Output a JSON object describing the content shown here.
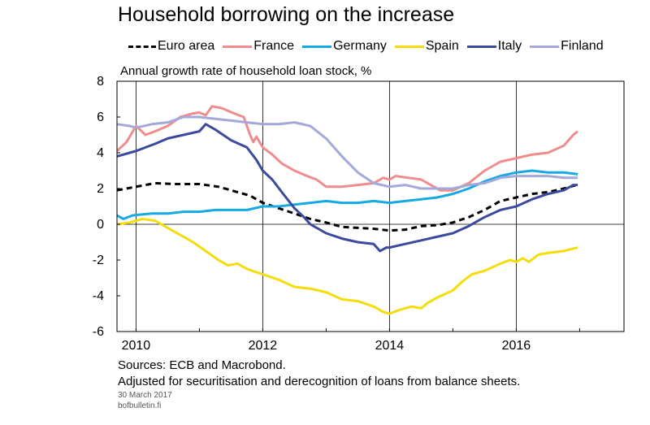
{
  "header": {
    "title": "Household borrowing on the increase"
  },
  "chart_data": {
    "type": "line",
    "title": "Household borrowing on the increase",
    "ylabel": "Annual growth rate of household loan stock, %",
    "xlabel": "",
    "ylim": [
      -6,
      8
    ],
    "yticks": [
      "8",
      "6",
      "4",
      "2",
      "0",
      "-2",
      "-4",
      "-6"
    ],
    "xlim": [
      2009.7,
      2017.7
    ],
    "xticks": [
      "2010",
      "2012",
      "2014",
      "2016"
    ],
    "grid": true,
    "legend_position": "top",
    "series": [
      {
        "name": "Euro area",
        "color": "#000000",
        "dashed": true,
        "points": [
          [
            2009.7,
            1.9
          ],
          [
            2010.0,
            2.1
          ],
          [
            2010.3,
            2.3
          ],
          [
            2010.6,
            2.25
          ],
          [
            2011.0,
            2.25
          ],
          [
            2011.3,
            2.1
          ],
          [
            2011.6,
            1.8
          ],
          [
            2011.8,
            1.6
          ],
          [
            2012.0,
            1.2
          ],
          [
            2012.25,
            0.9
          ],
          [
            2012.5,
            0.6
          ],
          [
            2012.75,
            0.3
          ],
          [
            2013.0,
            0.1
          ],
          [
            2013.25,
            -0.15
          ],
          [
            2013.5,
            -0.2
          ],
          [
            2013.75,
            -0.25
          ],
          [
            2014.0,
            -0.35
          ],
          [
            2014.25,
            -0.3
          ],
          [
            2014.5,
            -0.1
          ],
          [
            2014.75,
            -0.05
          ],
          [
            2015.0,
            0.1
          ],
          [
            2015.25,
            0.4
          ],
          [
            2015.5,
            0.8
          ],
          [
            2015.75,
            1.3
          ],
          [
            2016.0,
            1.5
          ],
          [
            2016.25,
            1.7
          ],
          [
            2016.5,
            1.8
          ],
          [
            2016.75,
            2.0
          ],
          [
            2016.95,
            2.2
          ]
        ]
      },
      {
        "name": "France",
        "color": "#F08C8C",
        "dashed": false,
        "points": [
          [
            2009.7,
            4.1
          ],
          [
            2009.85,
            4.6
          ],
          [
            2010.0,
            5.5
          ],
          [
            2010.15,
            5.0
          ],
          [
            2010.3,
            5.2
          ],
          [
            2010.5,
            5.5
          ],
          [
            2010.7,
            6.0
          ],
          [
            2010.9,
            6.2
          ],
          [
            2011.0,
            6.25
          ],
          [
            2011.1,
            6.1
          ],
          [
            2011.2,
            6.6
          ],
          [
            2011.35,
            6.5
          ],
          [
            2011.55,
            6.2
          ],
          [
            2011.7,
            6.0
          ],
          [
            2011.8,
            5.0
          ],
          [
            2011.85,
            4.6
          ],
          [
            2011.9,
            4.9
          ],
          [
            2012.0,
            4.3
          ],
          [
            2012.15,
            3.9
          ],
          [
            2012.3,
            3.4
          ],
          [
            2012.5,
            3.0
          ],
          [
            2012.7,
            2.7
          ],
          [
            2012.85,
            2.5
          ],
          [
            2013.0,
            2.1
          ],
          [
            2013.25,
            2.1
          ],
          [
            2013.5,
            2.2
          ],
          [
            2013.75,
            2.3
          ],
          [
            2013.9,
            2.6
          ],
          [
            2014.0,
            2.5
          ],
          [
            2014.1,
            2.7
          ],
          [
            2014.3,
            2.6
          ],
          [
            2014.5,
            2.5
          ],
          [
            2014.65,
            2.2
          ],
          [
            2014.8,
            1.9
          ],
          [
            2015.0,
            1.9
          ],
          [
            2015.25,
            2.3
          ],
          [
            2015.5,
            3.0
          ],
          [
            2015.75,
            3.5
          ],
          [
            2016.0,
            3.7
          ],
          [
            2016.25,
            3.9
          ],
          [
            2016.5,
            4.0
          ],
          [
            2016.75,
            4.4
          ],
          [
            2016.9,
            5.0
          ],
          [
            2016.97,
            5.2
          ]
        ]
      },
      {
        "name": "Germany",
        "color": "#17A9E1",
        "dashed": false,
        "points": [
          [
            2009.7,
            0.5
          ],
          [
            2009.8,
            0.3
          ],
          [
            2009.95,
            0.5
          ],
          [
            2010.25,
            0.6
          ],
          [
            2010.5,
            0.6
          ],
          [
            2010.75,
            0.7
          ],
          [
            2011.0,
            0.7
          ],
          [
            2011.25,
            0.8
          ],
          [
            2011.5,
            0.8
          ],
          [
            2011.75,
            0.8
          ],
          [
            2012.0,
            1.0
          ],
          [
            2012.25,
            1.0
          ],
          [
            2012.5,
            1.1
          ],
          [
            2012.75,
            1.2
          ],
          [
            2013.0,
            1.3
          ],
          [
            2013.25,
            1.2
          ],
          [
            2013.5,
            1.2
          ],
          [
            2013.75,
            1.3
          ],
          [
            2014.0,
            1.2
          ],
          [
            2014.25,
            1.3
          ],
          [
            2014.5,
            1.4
          ],
          [
            2014.75,
            1.5
          ],
          [
            2015.0,
            1.7
          ],
          [
            2015.25,
            2.0
          ],
          [
            2015.5,
            2.4
          ],
          [
            2015.75,
            2.7
          ],
          [
            2016.0,
            2.9
          ],
          [
            2016.25,
            3.0
          ],
          [
            2016.5,
            2.9
          ],
          [
            2016.75,
            2.9
          ],
          [
            2016.97,
            2.8
          ]
        ]
      },
      {
        "name": "Spain",
        "color": "#F5DD0C",
        "dashed": false,
        "points": [
          [
            2009.7,
            0.0
          ],
          [
            2009.9,
            0.1
          ],
          [
            2010.1,
            0.3
          ],
          [
            2010.3,
            0.2
          ],
          [
            2010.5,
            -0.2
          ],
          [
            2010.7,
            -0.6
          ],
          [
            2010.9,
            -1.0
          ],
          [
            2011.1,
            -1.5
          ],
          [
            2011.3,
            -2.0
          ],
          [
            2011.45,
            -2.3
          ],
          [
            2011.6,
            -2.2
          ],
          [
            2011.75,
            -2.5
          ],
          [
            2012.0,
            -2.8
          ],
          [
            2012.25,
            -3.1
          ],
          [
            2012.5,
            -3.5
          ],
          [
            2012.75,
            -3.6
          ],
          [
            2013.0,
            -3.8
          ],
          [
            2013.25,
            -4.2
          ],
          [
            2013.5,
            -4.3
          ],
          [
            2013.75,
            -4.6
          ],
          [
            2013.9,
            -4.9
          ],
          [
            2014.0,
            -5.0
          ],
          [
            2014.15,
            -4.8
          ],
          [
            2014.35,
            -4.6
          ],
          [
            2014.5,
            -4.7
          ],
          [
            2014.6,
            -4.4
          ],
          [
            2014.75,
            -4.1
          ],
          [
            2015.0,
            -3.7
          ],
          [
            2015.15,
            -3.2
          ],
          [
            2015.3,
            -2.8
          ],
          [
            2015.5,
            -2.6
          ],
          [
            2015.75,
            -2.2
          ],
          [
            2015.9,
            -2.0
          ],
          [
            2016.0,
            -2.1
          ],
          [
            2016.1,
            -1.9
          ],
          [
            2016.2,
            -2.1
          ],
          [
            2016.35,
            -1.7
          ],
          [
            2016.5,
            -1.6
          ],
          [
            2016.75,
            -1.5
          ],
          [
            2016.85,
            -1.4
          ],
          [
            2016.97,
            -1.3
          ]
        ]
      },
      {
        "name": "Italy",
        "color": "#3B4A9C",
        "dashed": false,
        "points": [
          [
            2009.7,
            3.8
          ],
          [
            2009.9,
            4.0
          ],
          [
            2010.0,
            4.1
          ],
          [
            2010.15,
            4.3
          ],
          [
            2010.3,
            4.5
          ],
          [
            2010.5,
            4.8
          ],
          [
            2010.75,
            5.0
          ],
          [
            2011.0,
            5.2
          ],
          [
            2011.1,
            5.6
          ],
          [
            2011.25,
            5.3
          ],
          [
            2011.5,
            4.7
          ],
          [
            2011.75,
            4.3
          ],
          [
            2011.9,
            3.6
          ],
          [
            2012.0,
            3.0
          ],
          [
            2012.15,
            2.5
          ],
          [
            2012.3,
            1.8
          ],
          [
            2012.5,
            0.9
          ],
          [
            2012.65,
            0.4
          ],
          [
            2012.75,
            0.0
          ],
          [
            2012.9,
            -0.3
          ],
          [
            2013.0,
            -0.5
          ],
          [
            2013.25,
            -0.8
          ],
          [
            2013.5,
            -1.0
          ],
          [
            2013.75,
            -1.1
          ],
          [
            2013.85,
            -1.5
          ],
          [
            2013.95,
            -1.3
          ],
          [
            2014.0,
            -1.3
          ],
          [
            2014.25,
            -1.1
          ],
          [
            2014.5,
            -0.9
          ],
          [
            2014.75,
            -0.7
          ],
          [
            2015.0,
            -0.5
          ],
          [
            2015.25,
            -0.1
          ],
          [
            2015.5,
            0.4
          ],
          [
            2015.75,
            0.8
          ],
          [
            2016.0,
            1.0
          ],
          [
            2016.25,
            1.4
          ],
          [
            2016.5,
            1.7
          ],
          [
            2016.75,
            1.9
          ],
          [
            2016.9,
            2.2
          ],
          [
            2016.97,
            2.2
          ]
        ]
      },
      {
        "name": "Finland",
        "color": "#A3A9D8",
        "dashed": false,
        "points": [
          [
            2009.7,
            5.6
          ],
          [
            2009.9,
            5.5
          ],
          [
            2010.0,
            5.4
          ],
          [
            2010.25,
            5.6
          ],
          [
            2010.5,
            5.7
          ],
          [
            2010.75,
            6.0
          ],
          [
            2011.0,
            6.0
          ],
          [
            2011.25,
            5.9
          ],
          [
            2011.5,
            5.8
          ],
          [
            2011.75,
            5.7
          ],
          [
            2012.0,
            5.6
          ],
          [
            2012.25,
            5.6
          ],
          [
            2012.5,
            5.7
          ],
          [
            2012.75,
            5.5
          ],
          [
            2013.0,
            4.8
          ],
          [
            2013.25,
            3.8
          ],
          [
            2013.5,
            2.9
          ],
          [
            2013.75,
            2.3
          ],
          [
            2014.0,
            2.1
          ],
          [
            2014.25,
            2.2
          ],
          [
            2014.5,
            2.0
          ],
          [
            2014.75,
            2.0
          ],
          [
            2015.0,
            2.0
          ],
          [
            2015.25,
            2.2
          ],
          [
            2015.5,
            2.3
          ],
          [
            2015.75,
            2.6
          ],
          [
            2016.0,
            2.7
          ],
          [
            2016.25,
            2.7
          ],
          [
            2016.5,
            2.7
          ],
          [
            2016.75,
            2.6
          ],
          [
            2016.97,
            2.6
          ]
        ]
      }
    ]
  },
  "footer": {
    "source": "Sources: ECB and Macrobond.",
    "note": "Adjusted for securitisation and derecognition of loans from balance sheets.",
    "date": "30 March 2017",
    "site": "bofbulletin.fi"
  }
}
